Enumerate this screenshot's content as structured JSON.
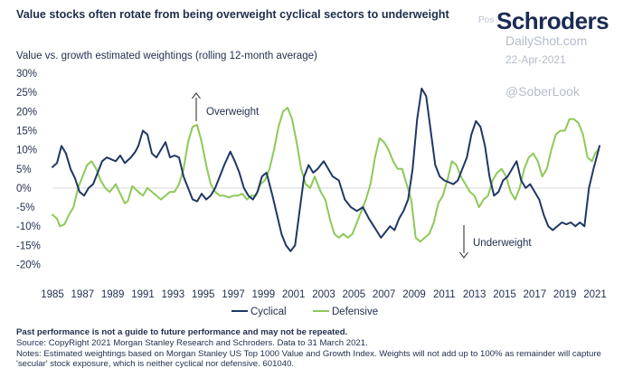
{
  "header": {
    "title": "Value stocks often rotate from being overweight cyclical sectors to underweight",
    "subtitle": "Value vs. growth estimated weightings (rolling 12-month average)",
    "brand": "Schroders",
    "brand_prefix": "Pos"
  },
  "watermark": {
    "site": "DailyShot.com",
    "date": "22-Apr-2021",
    "handle": "@SoberLook"
  },
  "colors": {
    "cyclical": "#1f3864",
    "defensive": "#8dc95a",
    "axis_text": "#1f2d4d",
    "zero_line": "#d9d9d9"
  },
  "chart_data": {
    "type": "line",
    "title": "Value vs. growth estimated weightings (rolling 12-month average)",
    "xlabel": "",
    "ylabel": "",
    "xlim": [
      1985,
      2021.3
    ],
    "ylim": [
      -22,
      30
    ],
    "y_ticks": [
      30,
      25,
      20,
      15,
      10,
      5,
      0,
      -5,
      -10,
      -15,
      -20
    ],
    "y_tick_labels": [
      "30%",
      "25%",
      "20%",
      "15%",
      "10%",
      "5%",
      "0%",
      "-5%",
      "-10%",
      "-15%",
      "-20%"
    ],
    "x_ticks": [
      1985,
      1987,
      1989,
      1991,
      1993,
      1995,
      1997,
      1999,
      2001,
      2003,
      2005,
      2007,
      2009,
      2011,
      2013,
      2015,
      2017,
      2019,
      2021
    ],
    "x_tick_labels": [
      "1985",
      "1987",
      "1989",
      "1991",
      "1993",
      "1995",
      "1997",
      "1999",
      "2001",
      "2003",
      "2005",
      "2007",
      "2009",
      "2011",
      "2013",
      "2015",
      "2017",
      "2019",
      "2021"
    ],
    "series": [
      {
        "name": "Cyclical",
        "points": [
          [
            1985.0,
            5.5
          ],
          [
            1985.3,
            6.5
          ],
          [
            1985.6,
            11
          ],
          [
            1985.9,
            9
          ],
          [
            1986.2,
            5
          ],
          [
            1986.5,
            2.5
          ],
          [
            1986.8,
            -1
          ],
          [
            1987.1,
            -2
          ],
          [
            1987.4,
            0
          ],
          [
            1987.7,
            1
          ],
          [
            1988.0,
            4
          ],
          [
            1988.3,
            7
          ],
          [
            1988.6,
            8
          ],
          [
            1988.9,
            7.5
          ],
          [
            1989.2,
            7
          ],
          [
            1989.5,
            8.5
          ],
          [
            1989.8,
            6.5
          ],
          [
            1990.2,
            8
          ],
          [
            1990.5,
            9.5
          ],
          [
            1990.7,
            11
          ],
          [
            1991.0,
            15
          ],
          [
            1991.3,
            14
          ],
          [
            1991.6,
            9
          ],
          [
            1991.9,
            8
          ],
          [
            1992.2,
            10
          ],
          [
            1992.5,
            12
          ],
          [
            1992.8,
            8
          ],
          [
            1993.1,
            8.5
          ],
          [
            1993.4,
            8
          ],
          [
            1993.7,
            3
          ],
          [
            1994.0,
            0
          ],
          [
            1994.3,
            -3
          ],
          [
            1994.6,
            -3.5
          ],
          [
            1994.9,
            -1.5
          ],
          [
            1995.2,
            -3
          ],
          [
            1995.5,
            -2
          ],
          [
            1995.8,
            0
          ],
          [
            1996.1,
            3
          ],
          [
            1996.4,
            6
          ],
          [
            1996.8,
            9.5
          ],
          [
            1997.1,
            7
          ],
          [
            1997.4,
            4
          ],
          [
            1997.7,
            0
          ],
          [
            1998.0,
            -2
          ],
          [
            1998.3,
            -3
          ],
          [
            1998.6,
            -1
          ],
          [
            1998.9,
            3
          ],
          [
            1999.2,
            4
          ],
          [
            1999.6,
            -2
          ],
          [
            1999.9,
            -7
          ],
          [
            2000.2,
            -12
          ],
          [
            2000.5,
            -15
          ],
          [
            2000.8,
            -16.5
          ],
          [
            2001.1,
            -15
          ],
          [
            2001.4,
            -6
          ],
          [
            2001.7,
            3
          ],
          [
            2002.0,
            6
          ],
          [
            2002.3,
            4
          ],
          [
            2002.6,
            5
          ],
          [
            2003.0,
            7
          ],
          [
            2003.3,
            5
          ],
          [
            2003.6,
            3
          ],
          [
            2004.0,
            2
          ],
          [
            2004.4,
            -3
          ],
          [
            2004.8,
            -5
          ],
          [
            2005.2,
            -6
          ],
          [
            2005.6,
            -5
          ],
          [
            2006.0,
            -8
          ],
          [
            2006.4,
            -10.5
          ],
          [
            2006.8,
            -13
          ],
          [
            2007.1,
            -11.5
          ],
          [
            2007.4,
            -10
          ],
          [
            2007.7,
            -11
          ],
          [
            2008.0,
            -8
          ],
          [
            2008.3,
            -6
          ],
          [
            2008.6,
            -3
          ],
          [
            2008.9,
            5
          ],
          [
            2009.2,
            18
          ],
          [
            2009.5,
            26
          ],
          [
            2009.8,
            24
          ],
          [
            2010.1,
            15
          ],
          [
            2010.4,
            6
          ],
          [
            2010.7,
            3
          ],
          [
            2011.0,
            2
          ],
          [
            2011.3,
            1.5
          ],
          [
            2011.6,
            1
          ],
          [
            2011.9,
            2
          ],
          [
            2012.2,
            5
          ],
          [
            2012.5,
            8
          ],
          [
            2012.8,
            14
          ],
          [
            2013.1,
            17.5
          ],
          [
            2013.4,
            16
          ],
          [
            2013.7,
            11
          ],
          [
            2014.0,
            3
          ],
          [
            2014.3,
            -2
          ],
          [
            2014.6,
            -1
          ],
          [
            2014.9,
            2
          ],
          [
            2015.2,
            3
          ],
          [
            2015.5,
            5
          ],
          [
            2015.8,
            7
          ],
          [
            2016.1,
            2
          ],
          [
            2016.4,
            0
          ],
          [
            2016.7,
            1
          ],
          [
            2017.0,
            -1
          ],
          [
            2017.3,
            -3
          ],
          [
            2017.6,
            -7
          ],
          [
            2017.9,
            -10
          ],
          [
            2018.2,
            -11
          ],
          [
            2018.5,
            -10
          ],
          [
            2018.8,
            -9
          ],
          [
            2019.1,
            -9.5
          ],
          [
            2019.4,
            -9
          ],
          [
            2019.7,
            -10
          ],
          [
            2020.0,
            -9
          ],
          [
            2020.3,
            -10
          ],
          [
            2020.6,
            0
          ],
          [
            2020.9,
            5
          ],
          [
            2021.1,
            8
          ],
          [
            2021.3,
            11
          ]
        ]
      },
      {
        "name": "Defensive",
        "points": [
          [
            1985.0,
            -7
          ],
          [
            1985.3,
            -8
          ],
          [
            1985.5,
            -10
          ],
          [
            1985.8,
            -9.5
          ],
          [
            1986.1,
            -7
          ],
          [
            1986.4,
            -5
          ],
          [
            1986.7,
            0
          ],
          [
            1987.0,
            3
          ],
          [
            1987.3,
            6
          ],
          [
            1987.6,
            7
          ],
          [
            1987.9,
            5
          ],
          [
            1988.2,
            2
          ],
          [
            1988.5,
            0
          ],
          [
            1988.8,
            -1
          ],
          [
            1989.2,
            1
          ],
          [
            1989.5,
            -1.5
          ],
          [
            1989.8,
            -4
          ],
          [
            1990.0,
            -3.5
          ],
          [
            1990.3,
            0.5
          ],
          [
            1990.7,
            -1
          ],
          [
            1991.0,
            -2
          ],
          [
            1991.3,
            0
          ],
          [
            1991.6,
            -1
          ],
          [
            1991.9,
            -2
          ],
          [
            1992.2,
            -3
          ],
          [
            1992.5,
            -2
          ],
          [
            1992.8,
            -1
          ],
          [
            1993.1,
            -1
          ],
          [
            1993.4,
            1
          ],
          [
            1993.7,
            5
          ],
          [
            1994.0,
            12
          ],
          [
            1994.3,
            16
          ],
          [
            1994.6,
            16.5
          ],
          [
            1994.9,
            12
          ],
          [
            1995.2,
            6
          ],
          [
            1995.5,
            1
          ],
          [
            1995.8,
            -1
          ],
          [
            1996.1,
            -2
          ],
          [
            1996.4,
            -2
          ],
          [
            1996.7,
            -2.5
          ],
          [
            1997.0,
            -2
          ],
          [
            1997.3,
            -2
          ],
          [
            1997.6,
            -1.5
          ],
          [
            1997.9,
            -3
          ],
          [
            1998.2,
            -2
          ],
          [
            1998.5,
            -2
          ],
          [
            1998.8,
            1
          ],
          [
            1999.1,
            2
          ],
          [
            1999.4,
            5
          ],
          [
            1999.7,
            10
          ],
          [
            2000.0,
            16
          ],
          [
            2000.3,
            20
          ],
          [
            2000.6,
            21
          ],
          [
            2000.9,
            18
          ],
          [
            2001.2,
            12
          ],
          [
            2001.5,
            5
          ],
          [
            2001.8,
            1
          ],
          [
            2002.1,
            0
          ],
          [
            2002.4,
            3
          ],
          [
            2002.8,
            -1
          ],
          [
            2003.1,
            -3
          ],
          [
            2003.4,
            -8
          ],
          [
            2003.7,
            -12
          ],
          [
            2004.0,
            -13
          ],
          [
            2004.3,
            -12
          ],
          [
            2004.6,
            -13
          ],
          [
            2004.9,
            -12
          ],
          [
            2005.2,
            -9
          ],
          [
            2005.5,
            -6
          ],
          [
            2005.8,
            -3
          ],
          [
            2006.1,
            1
          ],
          [
            2006.4,
            8
          ],
          [
            2006.7,
            13
          ],
          [
            2007.0,
            12
          ],
          [
            2007.3,
            10
          ],
          [
            2007.6,
            7
          ],
          [
            2007.9,
            5
          ],
          [
            2008.2,
            5
          ],
          [
            2008.5,
            1
          ],
          [
            2008.8,
            -3
          ],
          [
            2009.1,
            -13
          ],
          [
            2009.4,
            -14
          ],
          [
            2009.7,
            -13
          ],
          [
            2010.0,
            -12
          ],
          [
            2010.3,
            -9
          ],
          [
            2010.6,
            -4
          ],
          [
            2010.9,
            -2
          ],
          [
            2011.2,
            2
          ],
          [
            2011.5,
            7
          ],
          [
            2011.8,
            6
          ],
          [
            2012.1,
            3
          ],
          [
            2012.4,
            1
          ],
          [
            2012.7,
            -1
          ],
          [
            2013.0,
            -2
          ],
          [
            2013.3,
            -5
          ],
          [
            2013.6,
            -3
          ],
          [
            2013.9,
            -2
          ],
          [
            2014.2,
            2
          ],
          [
            2014.5,
            4
          ],
          [
            2014.8,
            5
          ],
          [
            2015.1,
            3
          ],
          [
            2015.4,
            -1
          ],
          [
            2015.7,
            -3
          ],
          [
            2016.0,
            0
          ],
          [
            2016.3,
            5
          ],
          [
            2016.6,
            8
          ],
          [
            2016.9,
            9
          ],
          [
            2017.2,
            7
          ],
          [
            2017.5,
            3
          ],
          [
            2017.8,
            5
          ],
          [
            2018.1,
            10
          ],
          [
            2018.4,
            14
          ],
          [
            2018.7,
            15
          ],
          [
            2019.0,
            15
          ],
          [
            2019.3,
            18
          ],
          [
            2019.6,
            18
          ],
          [
            2019.9,
            17
          ],
          [
            2020.2,
            14
          ],
          [
            2020.5,
            8
          ],
          [
            2020.8,
            7
          ],
          [
            2021.0,
            9
          ],
          [
            2021.2,
            10
          ]
        ]
      }
    ],
    "legend": {
      "position": "bottom-center",
      "entries": [
        "Cyclical",
        "Defensive"
      ]
    },
    "annotations": [
      {
        "text": "Overweight",
        "arrow": "up"
      },
      {
        "text": "Underweight",
        "arrow": "down"
      }
    ],
    "zero_line": true,
    "grid": false
  },
  "footer": {
    "disclaimer": "Past performance is not a guide to future performance and may not be repeated.",
    "source": "Source: CopyRight 2021 Morgan Stanley Research and Schroders. Data to 31 March 2021.",
    "notes": "Notes: Estimated weightings based on Morgan Stanley US Top 1000 Value and Growth Index. Weights will not add up to 100% as remainder will capture 'secular' stock exposure, which is neither cyclical nor defensive. 601040."
  }
}
